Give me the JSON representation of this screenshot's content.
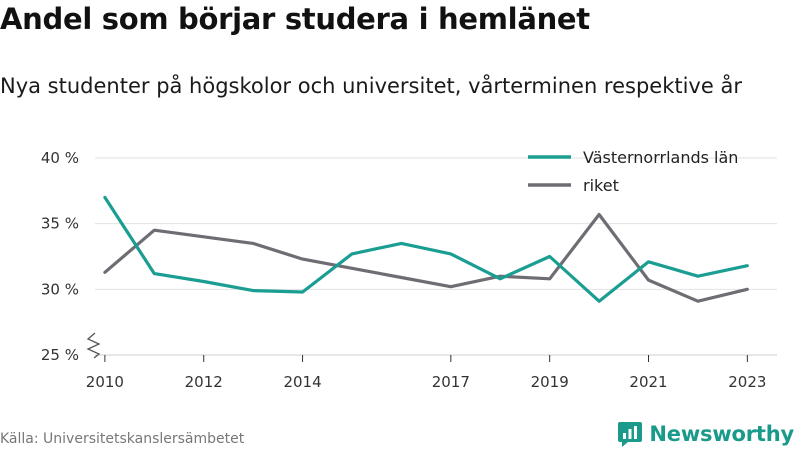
{
  "title": "Andel som börjar studera i hemlänet",
  "subtitle": "Nya studenter på högskolor och universitet, vårterminen respektive år",
  "source": "Källa: Universitetskanslersämbetet",
  "brand": {
    "name": "Newsworthy",
    "icon": "newsworthy-logo-icon",
    "color": "#1a9a8a"
  },
  "chart_data": {
    "type": "line",
    "title": "Andel som börjar studera i hemlänet",
    "xlabel": "",
    "ylabel": "",
    "ylim": [
      25,
      40
    ],
    "xlim": [
      2009.8,
      2023.6
    ],
    "y_ticks": [
      25,
      30,
      35,
      40
    ],
    "y_tick_labels": [
      "25 %",
      "30 %",
      "35 %",
      "40 %"
    ],
    "x_ticks": [
      2010,
      2012,
      2014,
      2017,
      2019,
      2021,
      2023
    ],
    "x_tick_labels": [
      "2010",
      "2012",
      "2014",
      "2017",
      "2019",
      "2021",
      "2023"
    ],
    "grid": true,
    "legend": "top-right",
    "axis_break": true,
    "x": [
      2010,
      2011,
      2012,
      2013,
      2014,
      2015,
      2016,
      2017,
      2018,
      2019,
      2020,
      2021,
      2022,
      2023
    ],
    "series": [
      {
        "name": "Västernorrlands län",
        "color": "#1a9e92",
        "values": [
          37.0,
          31.2,
          30.6,
          29.9,
          29.8,
          32.7,
          33.5,
          32.7,
          30.8,
          32.5,
          29.1,
          32.1,
          31.0,
          31.8
        ]
      },
      {
        "name": "riket",
        "color": "#6f6d73",
        "values": [
          31.3,
          34.5,
          34.0,
          33.5,
          32.3,
          31.6,
          30.9,
          30.2,
          31.0,
          30.8,
          35.7,
          30.7,
          29.1,
          30.0
        ]
      }
    ]
  }
}
